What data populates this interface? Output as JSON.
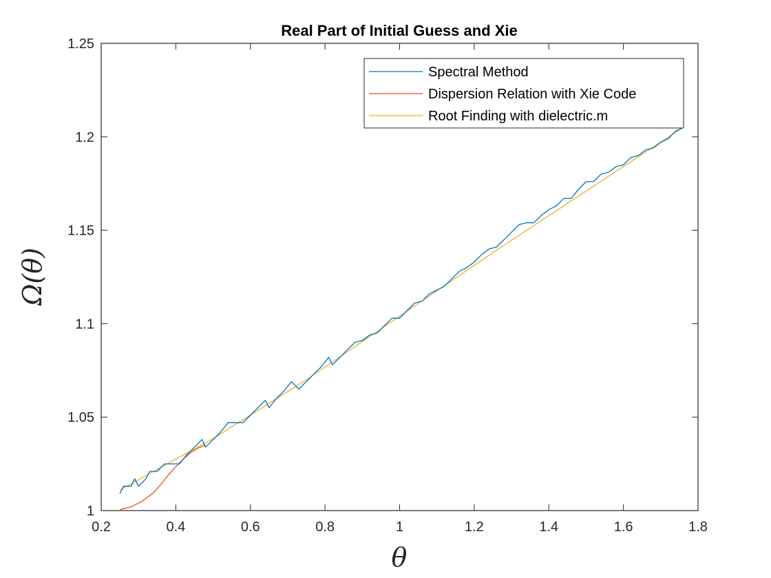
{
  "chart_data": {
    "type": "line",
    "title": "Real Part of Initial Guess and Xie",
    "xlabel": "θ",
    "ylabel": "Ω(θ)",
    "xlim": [
      0.2,
      1.8
    ],
    "ylim": [
      1.0,
      1.25
    ],
    "x_ticks": [
      "0.2",
      "0.4",
      "0.6",
      "0.8",
      "1",
      "1.2",
      "1.4",
      "1.6",
      "1.8"
    ],
    "y_ticks": [
      "1",
      "1.05",
      "1.1",
      "1.15",
      "1.2",
      "1.25"
    ],
    "grid": false,
    "legend_position": "top-right",
    "series": [
      {
        "name": "Spectral Method",
        "color": "#0072BD",
        "x": [
          0.25,
          0.26,
          0.28,
          0.29,
          0.3,
          0.32,
          0.33,
          0.35,
          0.37,
          0.39,
          0.41,
          0.43,
          0.45,
          0.47,
          0.48,
          0.5,
          0.52,
          0.54,
          0.56,
          0.58,
          0.6,
          0.62,
          0.64,
          0.65,
          0.67,
          0.69,
          0.71,
          0.73,
          0.75,
          0.77,
          0.79,
          0.81,
          0.82,
          0.84,
          0.86,
          0.88,
          0.9,
          0.92,
          0.94,
          0.96,
          0.98,
          1.0,
          1.02,
          1.04,
          1.06,
          1.08,
          1.1,
          1.12,
          1.14,
          1.16,
          1.18,
          1.2,
          1.22,
          1.24,
          1.26,
          1.28,
          1.3,
          1.32,
          1.34,
          1.36,
          1.38,
          1.4,
          1.42,
          1.44,
          1.46,
          1.48,
          1.5,
          1.52,
          1.54,
          1.56,
          1.58,
          1.6,
          1.62,
          1.64,
          1.66,
          1.68,
          1.7,
          1.72,
          1.74,
          1.76
        ],
        "y": [
          1.009,
          1.013,
          1.013,
          1.017,
          1.013,
          1.017,
          1.021,
          1.021,
          1.025,
          1.025,
          1.025,
          1.03,
          1.034,
          1.038,
          1.034,
          1.038,
          1.042,
          1.047,
          1.047,
          1.047,
          1.051,
          1.055,
          1.059,
          1.055,
          1.06,
          1.064,
          1.069,
          1.065,
          1.069,
          1.073,
          1.077,
          1.082,
          1.078,
          1.082,
          1.086,
          1.09,
          1.091,
          1.094,
          1.095,
          1.099,
          1.103,
          1.103,
          1.107,
          1.111,
          1.112,
          1.116,
          1.118,
          1.12,
          1.124,
          1.128,
          1.13,
          1.133,
          1.137,
          1.14,
          1.141,
          1.145,
          1.149,
          1.153,
          1.154,
          1.154,
          1.158,
          1.161,
          1.163,
          1.167,
          1.167,
          1.172,
          1.176,
          1.176,
          1.18,
          1.181,
          1.184,
          1.185,
          1.189,
          1.19,
          1.193,
          1.194,
          1.197,
          1.199,
          1.203,
          1.205
        ]
      },
      {
        "name": "Dispersion Relation with Xie Code",
        "color": "#D95319",
        "x": [
          0.25,
          0.28,
          0.31,
          0.34,
          0.36,
          0.38,
          0.4,
          0.42,
          0.44,
          0.46,
          0.48
        ],
        "y": [
          1.0005,
          1.002,
          1.005,
          1.0095,
          1.014,
          1.019,
          1.0235,
          1.0275,
          1.031,
          1.0335,
          1.035
        ]
      },
      {
        "name": "Root Finding with dielectric.m",
        "color": "#EDB120",
        "x": [
          0.25,
          0.5,
          0.75,
          1.0,
          1.25,
          1.5,
          1.76
        ],
        "y": [
          1.011,
          1.0385,
          1.07,
          1.104,
          1.138,
          1.171,
          1.205
        ]
      }
    ]
  }
}
